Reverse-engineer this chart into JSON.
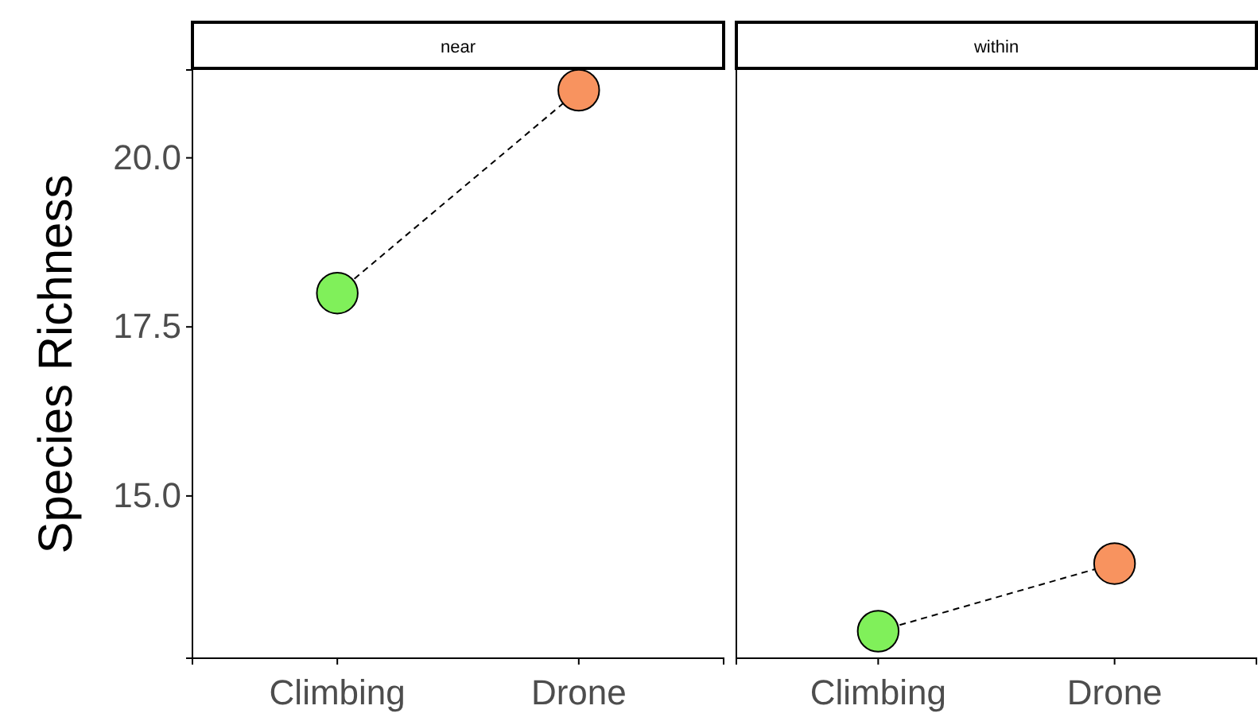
{
  "chart_data": [
    {
      "type": "line",
      "title": "near",
      "ylabel": "Species Richness",
      "categories": [
        "Climbing",
        "Drone"
      ],
      "values": [
        18,
        21
      ],
      "colors": [
        "#80f05a",
        "#f8935f"
      ],
      "line_style": "dashed",
      "marker": "circle",
      "ylim": [
        12.6,
        21.3
      ],
      "yticks": [
        {
          "value": 15,
          "label": "15.0"
        },
        {
          "value": 17.5,
          "label": "17.5"
        },
        {
          "value": 20,
          "label": "20.0"
        }
      ],
      "grid": false
    },
    {
      "type": "line",
      "title": "within",
      "categories": [
        "Climbing",
        "Drone"
      ],
      "values": [
        13,
        14
      ],
      "colors": [
        "#80f05a",
        "#f8935f"
      ],
      "line_style": "dashed",
      "marker": "circle",
      "ylim": [
        12.6,
        21.3
      ],
      "tick_labels": "x",
      "grid": false
    }
  ]
}
